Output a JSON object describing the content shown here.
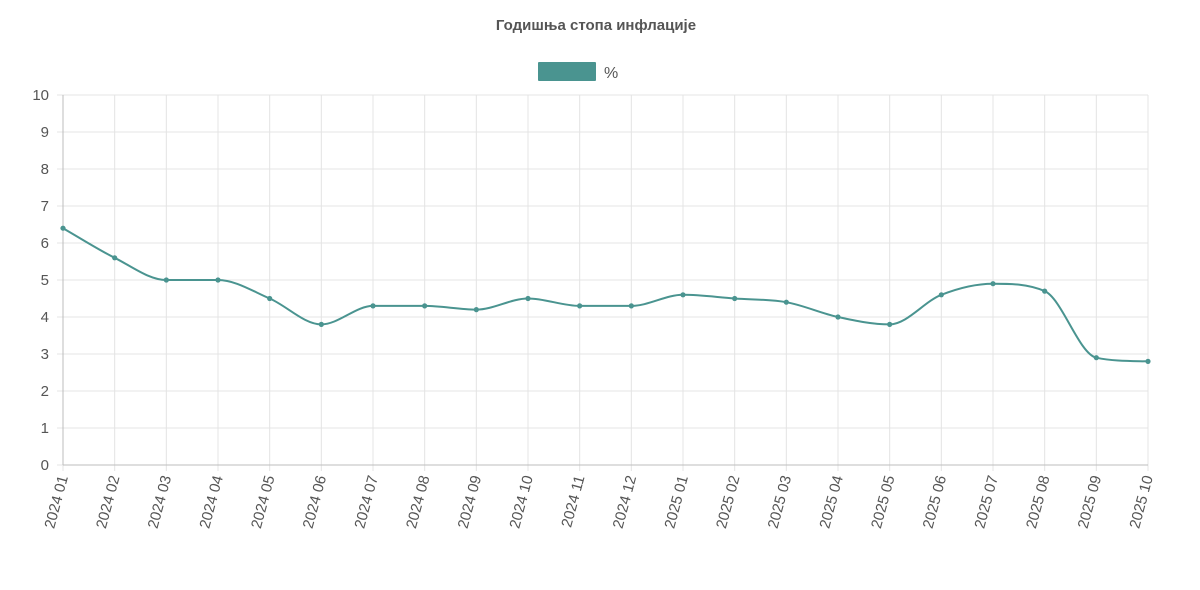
{
  "chart_data": {
    "type": "line",
    "title": "Годишња стопа инфлације",
    "xlabel": "",
    "ylabel": "",
    "ylim": [
      0,
      10
    ],
    "yticks": [
      0,
      1,
      2,
      3,
      4,
      5,
      6,
      7,
      8,
      9,
      10
    ],
    "grid": true,
    "legend_position": "top-center",
    "categories": [
      "2024 01",
      "2024 02",
      "2024 03",
      "2024 04",
      "2024 05",
      "2024 06",
      "2024 07",
      "2024 08",
      "2024 09",
      "2024 10",
      "2024 11",
      "2024 12",
      "2025 01",
      "2025 02",
      "2025 03",
      "2025 04",
      "2025 05",
      "2025 06",
      "2025 07",
      "2025 08",
      "2025 09",
      "2025 10"
    ],
    "series": [
      {
        "name": "%",
        "color": "#4a9490",
        "values": [
          6.4,
          5.6,
          5.0,
          5.0,
          4.5,
          3.8,
          4.3,
          4.3,
          4.2,
          4.5,
          4.3,
          4.3,
          4.6,
          4.5,
          4.4,
          4.0,
          3.8,
          4.6,
          4.9,
          4.7,
          2.9,
          2.8
        ]
      }
    ]
  }
}
